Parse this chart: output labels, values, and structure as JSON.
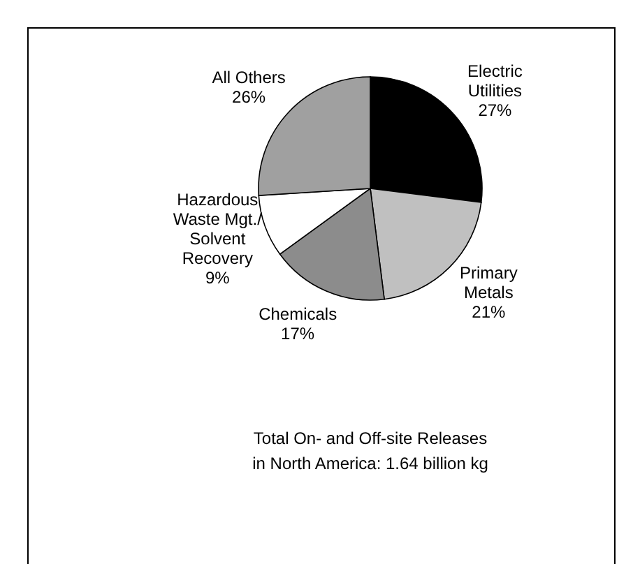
{
  "chart_data": {
    "type": "pie",
    "categories": [
      "Electric\nUtilities",
      "Primary\nMetals",
      "Chemicals",
      "Hazardous\nWaste Mgt./\nSolvent\nRecovery",
      "All Others"
    ],
    "values": [
      27,
      21,
      17,
      9,
      26
    ],
    "colors": [
      "#000000",
      "#c0c0c0",
      "#8c8c8c",
      "#ffffff",
      "#a0a0a0"
    ],
    "value_labels": [
      "27%",
      "21%",
      "17%",
      "9%",
      "26%"
    ],
    "annotations": [
      "Total On- and Off-site Releases\nin North America: 1.64 billion kg"
    ]
  }
}
